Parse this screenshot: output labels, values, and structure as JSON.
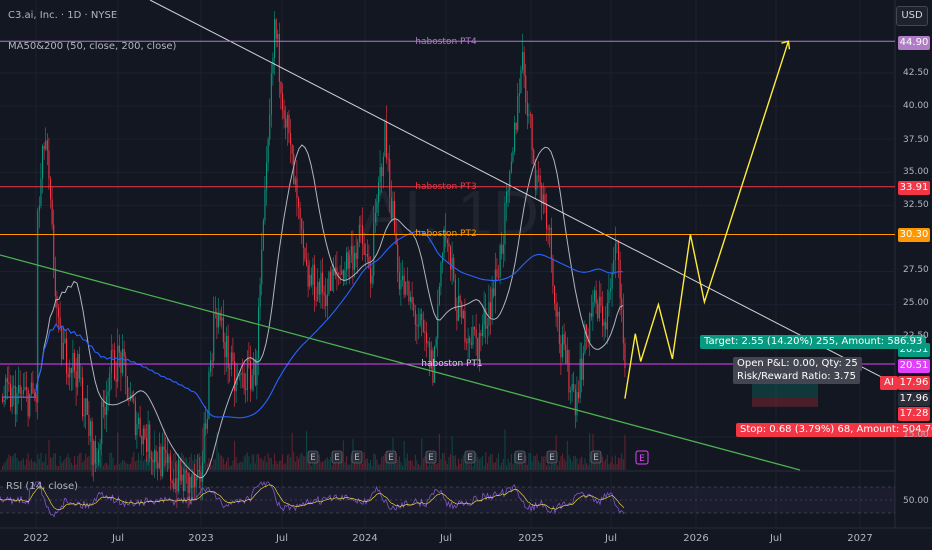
{
  "header": {
    "symbol_line": "C3.ai, Inc. · 1D · NYSE",
    "indicator": "MA50&200 (50, close, 200, close)",
    "rsi_label": "RSI (14, close)",
    "currency": "USD",
    "watermark": "AI, 1D"
  },
  "chart_data": {
    "type": "line",
    "title": "C3.ai, Inc. · 1D · NYSE",
    "x_ticks": [
      "2022",
      "Jul",
      "2023",
      "Jul",
      "2024",
      "Jul",
      "2025",
      "Jul",
      "2026",
      "Jul",
      "2027"
    ],
    "y_ticks": [
      "42.50",
      "40.00",
      "37.50",
      "35.00",
      "32.50",
      "27.50",
      "25.00",
      "22.50",
      "15.00"
    ],
    "rsi_ticks": [
      "50.00"
    ],
    "ylim": [
      12.5,
      47
    ],
    "levels": [
      {
        "label": "haboston PT4",
        "price": 44.9,
        "tag": "44.90",
        "color": "#b07cc6"
      },
      {
        "label": "haboston PT3",
        "price": 33.91,
        "tag": "33.91",
        "color": "#f23645"
      },
      {
        "label": "haboston PT2",
        "price": 30.3,
        "tag": "30.30",
        "color": "#ff9800"
      },
      {
        "label": "haboston PT1",
        "price": 20.51,
        "tag": "20.51",
        "color": "#e040fb"
      }
    ],
    "price_tags": [
      {
        "text": "20.51",
        "color": "#089981"
      },
      {
        "text": "AI",
        "color": "#f23645"
      },
      {
        "text": "17.96",
        "color": "#f23645"
      },
      {
        "text": "17.96",
        "color": "#2a2e39"
      },
      {
        "text": "17.28",
        "color": "#f23645"
      }
    ],
    "trade": {
      "target": "Target: 2.55 (14.20%) 255, Amount: 586.93",
      "pnl": "Open P&L: 0.00, Qty: 25",
      "rr": "Risk/Reward Ratio: 3.75",
      "stop": "Stop: 0.68 (3.79%) 68, Amount: 504.76"
    },
    "projection": [
      {
        "date": "2025-07-28",
        "price": 17.9
      },
      {
        "date": "2025-08-20",
        "price": 22.8
      },
      {
        "date": "2025-09-01",
        "price": 20.7
      },
      {
        "date": "2025-10-10",
        "price": 25.0
      },
      {
        "date": "2025-11-10",
        "price": 20.9
      },
      {
        "date": "2025-12-20",
        "price": 30.3
      },
      {
        "date": "2026-01-20",
        "price": 25.2
      },
      {
        "date": "2026-07-25",
        "price": 44.9
      }
    ],
    "earnings_markers": [
      "E",
      "E",
      "E",
      "E",
      "E",
      "E",
      "E",
      "E",
      "E",
      "E",
      "E",
      "E",
      "E"
    ]
  }
}
